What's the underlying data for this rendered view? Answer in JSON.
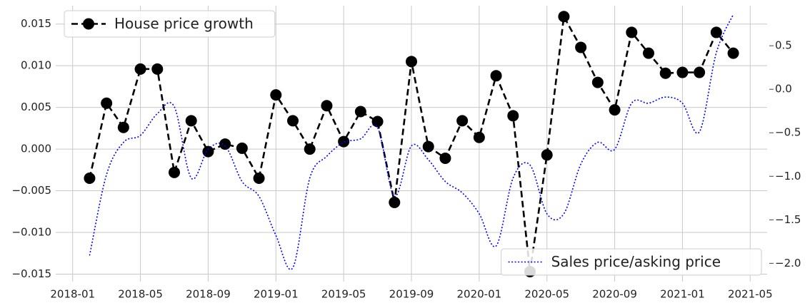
{
  "chart_data": {
    "type": "line",
    "x": [
      "2018-02",
      "2018-03",
      "2018-04",
      "2018-05",
      "2018-06",
      "2018-07",
      "2018-08",
      "2018-09",
      "2018-10",
      "2018-11",
      "2018-12",
      "2019-01",
      "2019-02",
      "2019-03",
      "2019-04",
      "2019-05",
      "2019-06",
      "2019-07",
      "2019-08",
      "2019-09",
      "2019-10",
      "2019-11",
      "2019-12",
      "2020-01",
      "2020-02",
      "2020-03",
      "2020-04",
      "2020-05",
      "2020-06",
      "2020-07",
      "2020-08",
      "2020-09",
      "2020-10",
      "2020-11",
      "2020-12",
      "2021-01",
      "2021-02",
      "2021-03",
      "2021-04"
    ],
    "series": [
      {
        "name": "House price growth",
        "color": "#000000",
        "axis": "y",
        "style": "dashed",
        "marker": "circle",
        "legend": "upper left",
        "values": [
          -0.0035,
          0.0055,
          0.0026,
          0.0096,
          0.0096,
          -0.0028,
          0.0034,
          -0.0003,
          0.0006,
          0.0001,
          -0.0035,
          0.0065,
          0.0034,
          0.0,
          0.0052,
          0.0009,
          0.0045,
          0.0033,
          -0.0064,
          0.0105,
          0.0003,
          -0.0011,
          0.0034,
          0.0014,
          0.0088,
          0.004,
          -0.0147,
          -0.0007,
          0.0159,
          0.0122,
          0.008,
          0.0047,
          0.014,
          0.0115,
          0.0091,
          0.0092,
          0.0092,
          0.014,
          0.0115
        ]
      },
      {
        "name": "Sales price/asking price",
        "color": "#0000ff",
        "axis": "y2",
        "style": "dotted",
        "legend": "lower right",
        "values": [
          -1.91,
          -0.98,
          -0.61,
          -0.53,
          -0.28,
          -0.2,
          -1.02,
          -0.69,
          -0.65,
          -1.06,
          -1.23,
          -1.68,
          -2.05,
          -1.02,
          -0.77,
          -0.61,
          -0.57,
          -0.44,
          -1.23,
          -0.65,
          -0.81,
          -1.06,
          -1.19,
          -1.43,
          -1.8,
          -1.02,
          -0.87,
          -1.43,
          -1.43,
          -0.86,
          -0.61,
          -0.69,
          -0.16,
          -0.16,
          -0.09,
          -0.16,
          -0.49,
          0.42,
          0.86
        ]
      }
    ],
    "xlim": [
      "2017-12",
      "2021-06"
    ],
    "xticks": [
      "2018-01",
      "2018-05",
      "2018-09",
      "2019-01",
      "2019-05",
      "2019-09",
      "2020-01",
      "2020-05",
      "2020-09",
      "2021-01",
      "2021-05"
    ],
    "ylim": [
      -0.0159,
      0.0172
    ],
    "yticks": [
      {
        "value": -0.015,
        "label": "−0.015"
      },
      {
        "value": -0.01,
        "label": "−0.010"
      },
      {
        "value": -0.005,
        "label": "−0.005"
      },
      {
        "value": 0,
        "label": "0.000"
      },
      {
        "value": 0.005,
        "label": "0.005"
      },
      {
        "value": 0.01,
        "label": "0.010"
      },
      0.015
    ],
    "y2lim": [
      -2.21,
      0.96
    ],
    "y2ticks": [
      {
        "value": -2,
        "label": "−2.0"
      },
      {
        "value": -1.5,
        "label": "−1.5"
      },
      {
        "value": -1,
        "label": "−1.0"
      },
      {
        "value": -0.5,
        "label": "−0.5"
      },
      {
        "value": 0,
        "label": "0.0"
      },
      0.5
    ],
    "grid": true
  }
}
